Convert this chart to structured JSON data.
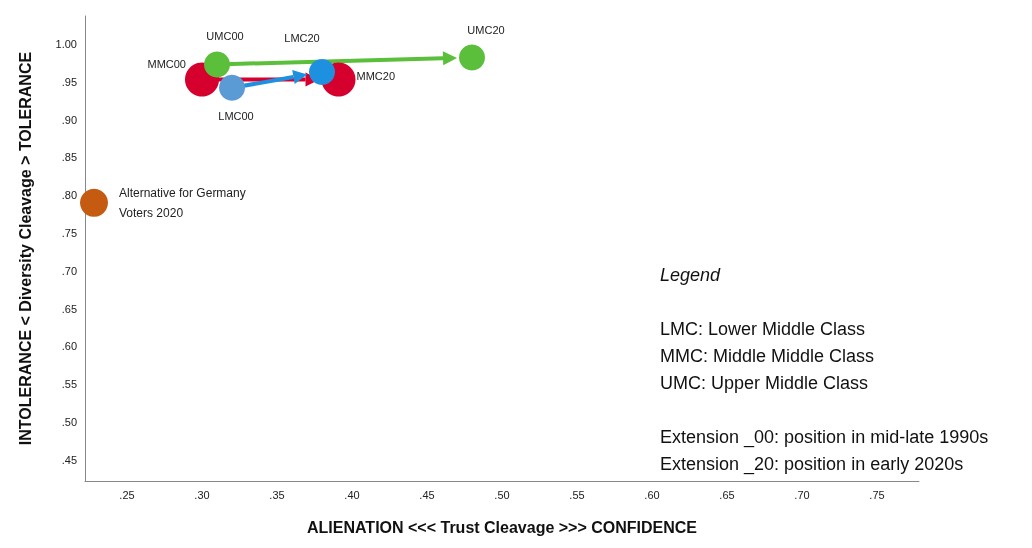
{
  "chart_data": {
    "type": "scatter",
    "xlabel": "ALIENATION <<< Trust Cleavage >>> CONFIDENCE",
    "ylabel": "INTOLERANCE < Diversity Cleavage > TOLERANCE",
    "xlim": [
      0.222,
      0.778
    ],
    "ylim": [
      0.422,
      1.037
    ],
    "xticks": [
      {
        "value": 0.25,
        "label": ".25"
      },
      {
        "value": 0.3,
        "label": ".30"
      },
      {
        "value": 0.35,
        "label": ".35"
      },
      {
        "value": 0.4,
        "label": ".40"
      },
      {
        "value": 0.45,
        "label": ".45"
      },
      {
        "value": 0.5,
        "label": ".50"
      },
      {
        "value": 0.55,
        "label": ".55"
      },
      {
        "value": 0.6,
        "label": ".60"
      },
      {
        "value": 0.65,
        "label": ".65"
      },
      {
        "value": 0.7,
        "label": ".70"
      },
      {
        "value": 0.75,
        "label": ".75"
      }
    ],
    "yticks": [
      {
        "value": 0.45,
        "label": ".45"
      },
      {
        "value": 0.5,
        "label": ".50"
      },
      {
        "value": 0.55,
        "label": ".55"
      },
      {
        "value": 0.6,
        "label": ".60"
      },
      {
        "value": 0.65,
        "label": ".65"
      },
      {
        "value": 0.7,
        "label": ".70"
      },
      {
        "value": 0.75,
        "label": ".75"
      },
      {
        "value": 0.8,
        "label": ".80"
      },
      {
        "value": 0.85,
        "label": ".85"
      },
      {
        "value": 0.9,
        "label": ".90"
      },
      {
        "value": 0.95,
        "label": ".95"
      },
      {
        "value": 1.0,
        "label": "1.00"
      }
    ],
    "grid": false,
    "marker": "circle",
    "series": [
      {
        "name": "MMC00",
        "color": "#d6002e",
        "x": [
          0.3
        ],
        "values": [
          0.953
        ]
      },
      {
        "name": "LMC00",
        "color": "#5b9bd5",
        "x": [
          0.32
        ],
        "values": [
          0.942
        ]
      },
      {
        "name": "UMC00",
        "color": "#5bbf3c",
        "x": [
          0.31
        ],
        "values": [
          0.973
        ]
      },
      {
        "name": "MMC20",
        "color": "#d6002e",
        "x": [
          0.391
        ],
        "values": [
          0.953
        ]
      },
      {
        "name": "LMC20",
        "color": "#1e90e0",
        "x": [
          0.38
        ],
        "values": [
          0.963
        ]
      },
      {
        "name": "UMC20",
        "color": "#5bbf3c",
        "x": [
          0.48
        ],
        "values": [
          0.982
        ]
      },
      {
        "name": "Alternative for Germany Voters 2020",
        "color": "#c55a11",
        "x": [
          0.228
        ],
        "values": [
          0.79
        ]
      }
    ],
    "annotations": [
      "Legend",
      "LMC: Lower Middle Class",
      "MMC: Middle Middle Class",
      "UMC: Upper Middle Class",
      "Extension _00: position in mid-late 1990s",
      "Extension _20: position in early 2020s"
    ]
  }
}
